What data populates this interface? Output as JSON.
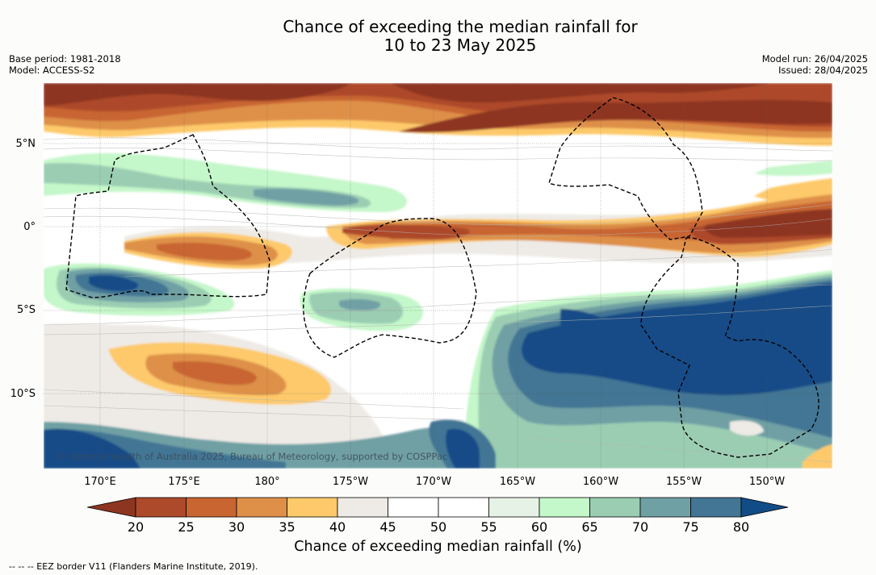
{
  "title": {
    "line1": "Chance of exceeding the median rainfall for",
    "line2": "10 to 23 May 2025"
  },
  "meta_left": {
    "base_period": "Base period: 1981-2018",
    "model": "Model: ACCESS-S2"
  },
  "meta_right": {
    "model_run": "Model run: 26/04/2025",
    "issued": "Issued: 28/04/2025"
  },
  "map": {
    "copyright": "© Commonwealth of Australia 2025, Bureau of Meteorology, supported by COSPPac",
    "lat_labels": [
      "5°N",
      "0°",
      "5°S",
      "10°S"
    ],
    "lon_labels": [
      "170°E",
      "175°E",
      "180°",
      "175°W",
      "170°W",
      "165°W",
      "160°W",
      "155°W",
      "150°W"
    ]
  },
  "colorbar": {
    "title": "Chance of exceeding median rainfall (%)",
    "ticks": [
      "20",
      "25",
      "30",
      "35",
      "40",
      "45",
      "50",
      "55",
      "60",
      "65",
      "70",
      "75",
      "80"
    ],
    "colors": {
      "lt20": "#8e3521",
      "c20_25": "#ad4a2b",
      "c25_30": "#c86531",
      "c30_35": "#de9049",
      "c35_40": "#fdc96b",
      "c40_45": "#eeebe6",
      "c45_50": "#ffffff",
      "c50_55": "#ffffff",
      "c55_60": "#e6f2e5",
      "c60_65": "#c4f7c9",
      "c65_70": "#9bcdb3",
      "c70_75": "#6fa0a4",
      "c75_80": "#437694",
      "gt80": "#124c87"
    }
  },
  "footer": "--  --  -- EEZ border V11 (Flanders Marine Institute, 2019)."
}
